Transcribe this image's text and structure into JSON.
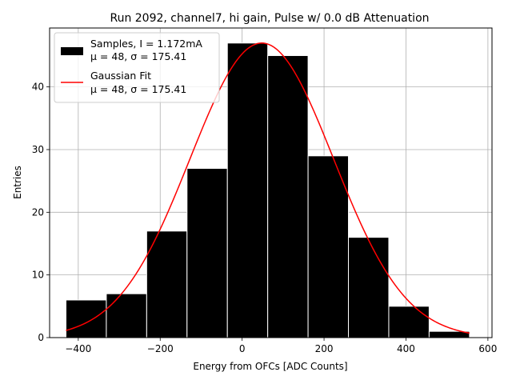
{
  "chart_data": {
    "type": "bar",
    "title": "Run 2092, channel7, hi gain, Pulse w/ 0.0 dB Attenuation",
    "xlabel": "Energy from OFCs [ADC Counts]",
    "ylabel": "Entries",
    "xlim": [
      -470,
      610
    ],
    "ylim": [
      0,
      49.4
    ],
    "xticks": [
      -400,
      -200,
      0,
      200,
      400,
      600
    ],
    "xtick_labels": [
      "−400",
      "−200",
      "0",
      "200",
      "400",
      "600"
    ],
    "yticks": [
      0,
      10,
      20,
      30,
      40
    ],
    "ytick_labels": [
      "0",
      "10",
      "20",
      "30",
      "40"
    ],
    "grid": true,
    "legend_position": "upper-left",
    "histogram": {
      "name": "Samples, I = 1.172mA",
      "name_line2": "μ = 48, σ = 175.41",
      "color": "#000000",
      "edge_color": "#ffffff",
      "bin_edges": [
        -430,
        -331.5,
        -233,
        -134.5,
        -36,
        62.5,
        161,
        259.5,
        358,
        456.5,
        555
      ],
      "counts": [
        6,
        7,
        17,
        27,
        47,
        45,
        29,
        16,
        5,
        1
      ]
    },
    "fit": {
      "name": "Gaussian Fit",
      "name_line2": "μ = 48, σ = 175.41",
      "color": "#ff0000",
      "mu": 48,
      "sigma": 175.41,
      "amplitude": 47,
      "x_range": [
        -430,
        555
      ]
    }
  }
}
